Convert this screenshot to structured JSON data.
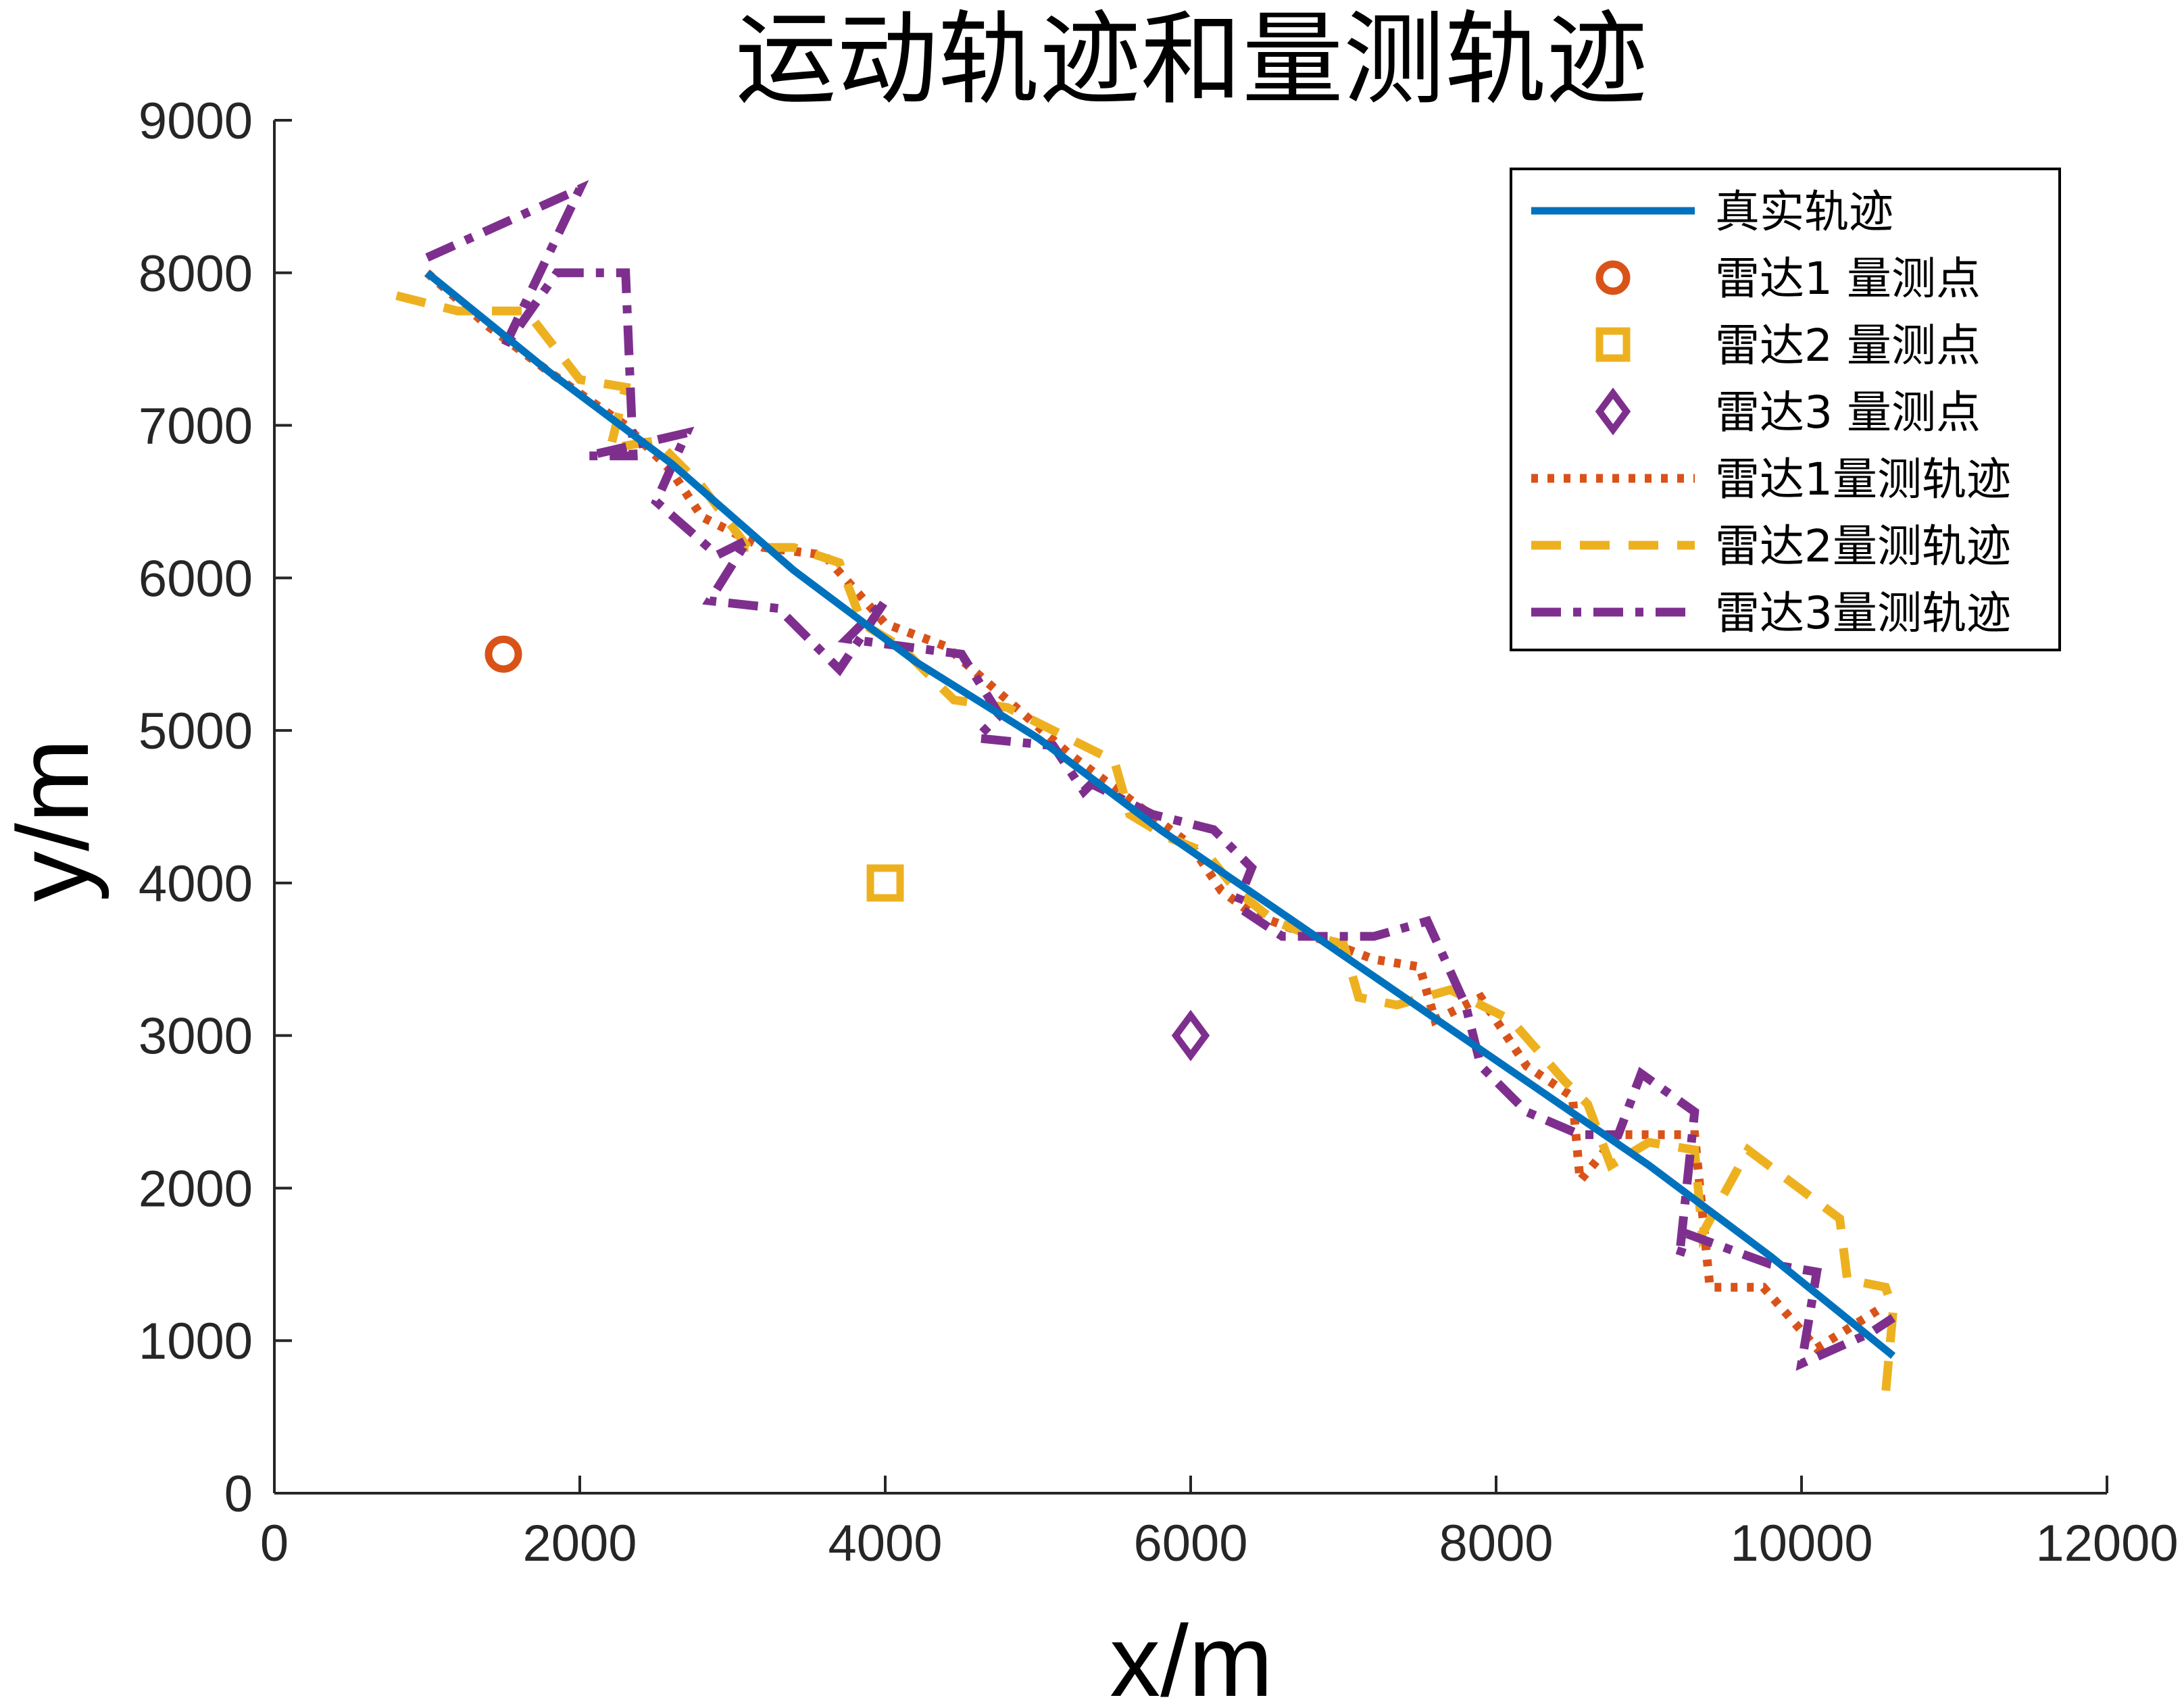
{
  "chart_data": {
    "type": "line",
    "title": "运动轨迹和量测轨迹",
    "xlabel": "x/m",
    "ylabel": "y/m",
    "xlim": [
      0,
      12000
    ],
    "ylim": [
      0,
      9000
    ],
    "xticks": [
      "0",
      "2000",
      "4000",
      "6000",
      "8000",
      "10000",
      "12000"
    ],
    "yticks": [
      "0",
      "1000",
      "2000",
      "3000",
      "4000",
      "5000",
      "6000",
      "7000",
      "8000",
      "9000"
    ],
    "grid": false,
    "legend_position": "top-right",
    "colors": {
      "true_track": "#0072BD",
      "radar1": "#D95319",
      "radar2": "#EDB120",
      "radar3": "#7E2F8E",
      "axis": "#262626"
    },
    "series": [
      {
        "name": "真实轨迹",
        "kind": "line",
        "style": "solid",
        "x": [
          1000,
          1800,
          2600,
          3400,
          4200,
          5000,
          5800,
          6600,
          7400,
          8200,
          9000,
          9800,
          10600
        ],
        "y": [
          8000,
          7350,
          6750,
          6050,
          5450,
          4950,
          4350,
          3800,
          3250,
          2700,
          2150,
          1550,
          900
        ]
      },
      {
        "name": "雷达1 量测点",
        "kind": "marker",
        "marker": "circle",
        "x": [
          1500
        ],
        "y": [
          5500
        ]
      },
      {
        "name": "雷达2 量测点",
        "kind": "marker",
        "marker": "square",
        "x": [
          4000
        ],
        "y": [
          4000
        ]
      },
      {
        "name": "雷达3 量测点",
        "kind": "marker",
        "marker": "diamond",
        "x": [
          6000
        ],
        "y": [
          3000
        ]
      },
      {
        "name": "雷达1量测轨迹",
        "kind": "line",
        "style": "dotted",
        "x": [
          1000,
          1400,
          1800,
          2300,
          2600,
          2800,
          3200,
          3600,
          4000,
          4400,
          4800,
          5200,
          5600,
          6000,
          6200,
          6400,
          6800,
          7200,
          7500,
          7600,
          7900,
          8200,
          8500,
          8550,
          8800,
          9300,
          9400,
          9750,
          10100,
          10500
        ],
        "y": [
          8000,
          7650,
          7350,
          7000,
          6700,
          6400,
          6200,
          6150,
          5700,
          5550,
          5200,
          4850,
          4550,
          4250,
          3950,
          3800,
          3650,
          3500,
          3450,
          3100,
          3250,
          2800,
          2600,
          2050,
          2350,
          2350,
          1350,
          1350,
          950,
          1200
        ]
      },
      {
        "name": "雷达2量测轨迹",
        "kind": "line",
        "style": "dashed",
        "x": [
          800,
          1200,
          1650,
          2000,
          2300,
          2200,
          2500,
          2800,
          3100,
          3400,
          3700,
          3850,
          4100,
          4450,
          4800,
          5200,
          5500,
          5600,
          5850,
          6100,
          6300,
          6550,
          6800,
          7000,
          7100,
          7350,
          7700,
          8100,
          8450,
          8600,
          8750,
          9000,
          9300,
          9350,
          9650,
          10250,
          10300,
          10550,
          10600,
          10550
        ],
        "y": [
          7850,
          7750,
          7750,
          7300,
          7250,
          6850,
          6900,
          6600,
          6200,
          6200,
          6100,
          5700,
          5550,
          5200,
          5150,
          4950,
          4800,
          4450,
          4300,
          4200,
          3950,
          3750,
          3650,
          3600,
          3250,
          3200,
          3300,
          3100,
          2700,
          2550,
          2150,
          2300,
          2250,
          1700,
          2250,
          1800,
          1400,
          1350,
          1200,
          650
        ]
      },
      {
        "name": "雷达3量测轨迹",
        "kind": "line",
        "style": "dashdot",
        "x": [
          1000,
          2000,
          1500,
          1850,
          2300,
          2350,
          2050,
          2700,
          2500,
          2900,
          3100,
          2850,
          3300,
          3700,
          4000,
          3750,
          4500,
          4750,
          4600,
          5100,
          5300,
          5350,
          5750,
          6150,
          6400,
          6300,
          6600,
          7200,
          7550,
          7800,
          7900,
          8200,
          8550,
          8800,
          8950,
          9300,
          9200,
          9250,
          9800,
          10100,
          10000,
          10450,
          10600
        ],
        "y": [
          8100,
          8550,
          7500,
          8000,
          8000,
          6800,
          6800,
          6950,
          6500,
          6150,
          6250,
          5850,
          5800,
          5400,
          5850,
          5600,
          5500,
          5100,
          4950,
          4900,
          4600,
          4650,
          4450,
          4350,
          4100,
          3850,
          3650,
          3650,
          3750,
          3200,
          2800,
          2500,
          2350,
          2350,
          2750,
          2500,
          1550,
          1700,
          1500,
          1450,
          850,
          1050,
          1150
        ]
      }
    ],
    "legend": [
      "真实轨迹",
      "雷达1 量测点",
      "雷达2 量测点",
      "雷达3 量测点",
      "雷达1量测轨迹",
      "雷达2量测轨迹",
      "雷达3量测轨迹"
    ]
  }
}
